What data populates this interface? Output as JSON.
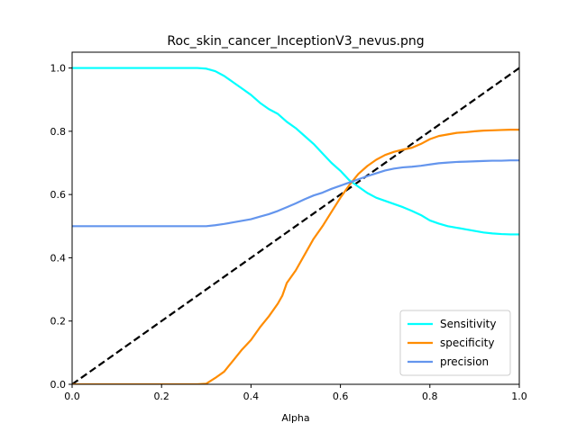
{
  "chart_data": {
    "type": "line",
    "title": "Roc_skin_cancer_InceptionV3_nevus.png",
    "xlabel": "Alpha",
    "ylabel": "",
    "xlim": [
      0,
      1
    ],
    "ylim": [
      0,
      1.05
    ],
    "x_ticks": [
      0.0,
      0.2,
      0.4,
      0.6,
      0.8,
      1.0
    ],
    "y_ticks": [
      0.0,
      0.2,
      0.4,
      0.6,
      0.8,
      1.0
    ],
    "x_tick_labels": [
      "0.0",
      "0.2",
      "0.4",
      "0.6",
      "0.8",
      "1.0"
    ],
    "y_tick_labels": [
      "0.0",
      "0.2",
      "0.4",
      "0.6",
      "0.8",
      "1.0"
    ],
    "grid": false,
    "legend_position": "lower-right",
    "series": [
      {
        "name": "Sensitivity",
        "color": "#00ffff",
        "x": [
          0.0,
          0.05,
          0.1,
          0.15,
          0.2,
          0.25,
          0.28,
          0.3,
          0.32,
          0.34,
          0.36,
          0.38,
          0.4,
          0.42,
          0.44,
          0.46,
          0.48,
          0.5,
          0.52,
          0.54,
          0.56,
          0.58,
          0.6,
          0.62,
          0.64,
          0.66,
          0.68,
          0.7,
          0.72,
          0.74,
          0.76,
          0.78,
          0.8,
          0.82,
          0.84,
          0.86,
          0.88,
          0.9,
          0.92,
          0.94,
          0.96,
          0.98,
          1.0
        ],
        "y": [
          1.0,
          1.0,
          1.0,
          1.0,
          1.0,
          1.0,
          1.0,
          0.998,
          0.99,
          0.975,
          0.955,
          0.935,
          0.915,
          0.89,
          0.87,
          0.855,
          0.83,
          0.81,
          0.785,
          0.76,
          0.73,
          0.7,
          0.675,
          0.645,
          0.625,
          0.605,
          0.59,
          0.58,
          0.57,
          0.56,
          0.548,
          0.535,
          0.518,
          0.508,
          0.5,
          0.495,
          0.49,
          0.485,
          0.48,
          0.477,
          0.475,
          0.474,
          0.474
        ]
      },
      {
        "name": "specificity",
        "color": "#ff8c00",
        "x": [
          0.0,
          0.05,
          0.1,
          0.15,
          0.2,
          0.25,
          0.28,
          0.3,
          0.32,
          0.34,
          0.36,
          0.38,
          0.4,
          0.42,
          0.44,
          0.46,
          0.47,
          0.48,
          0.5,
          0.52,
          0.54,
          0.56,
          0.58,
          0.6,
          0.62,
          0.64,
          0.66,
          0.68,
          0.7,
          0.72,
          0.74,
          0.76,
          0.78,
          0.8,
          0.82,
          0.84,
          0.86,
          0.88,
          0.9,
          0.92,
          0.94,
          0.96,
          0.98,
          1.0
        ],
        "y": [
          0.0,
          0.0,
          0.0,
          0.0,
          0.0,
          0.0,
          0.0,
          0.002,
          0.02,
          0.04,
          0.075,
          0.11,
          0.14,
          0.18,
          0.215,
          0.255,
          0.28,
          0.32,
          0.36,
          0.41,
          0.46,
          0.5,
          0.545,
          0.59,
          0.63,
          0.665,
          0.69,
          0.71,
          0.725,
          0.735,
          0.742,
          0.748,
          0.76,
          0.775,
          0.785,
          0.79,
          0.795,
          0.797,
          0.8,
          0.802,
          0.803,
          0.804,
          0.805,
          0.805
        ]
      },
      {
        "name": "precision",
        "color": "#6495ed",
        "x": [
          0.0,
          0.05,
          0.1,
          0.15,
          0.2,
          0.25,
          0.28,
          0.3,
          0.32,
          0.34,
          0.36,
          0.38,
          0.4,
          0.42,
          0.44,
          0.46,
          0.48,
          0.5,
          0.52,
          0.54,
          0.56,
          0.58,
          0.6,
          0.62,
          0.64,
          0.66,
          0.68,
          0.7,
          0.72,
          0.74,
          0.76,
          0.78,
          0.8,
          0.82,
          0.84,
          0.86,
          0.88,
          0.9,
          0.92,
          0.94,
          0.96,
          0.98,
          1.0
        ],
        "y": [
          0.5,
          0.5,
          0.5,
          0.5,
          0.5,
          0.5,
          0.5,
          0.5,
          0.503,
          0.507,
          0.512,
          0.517,
          0.522,
          0.53,
          0.538,
          0.548,
          0.56,
          0.572,
          0.585,
          0.597,
          0.606,
          0.618,
          0.628,
          0.638,
          0.648,
          0.658,
          0.667,
          0.676,
          0.682,
          0.686,
          0.688,
          0.691,
          0.695,
          0.699,
          0.701,
          0.703,
          0.704,
          0.705,
          0.706,
          0.707,
          0.707,
          0.708,
          0.708
        ]
      }
    ],
    "reference_line": {
      "style": "dashed",
      "color": "#000000",
      "x": [
        0.0,
        1.0
      ],
      "y": [
        0.0,
        1.0
      ]
    }
  }
}
